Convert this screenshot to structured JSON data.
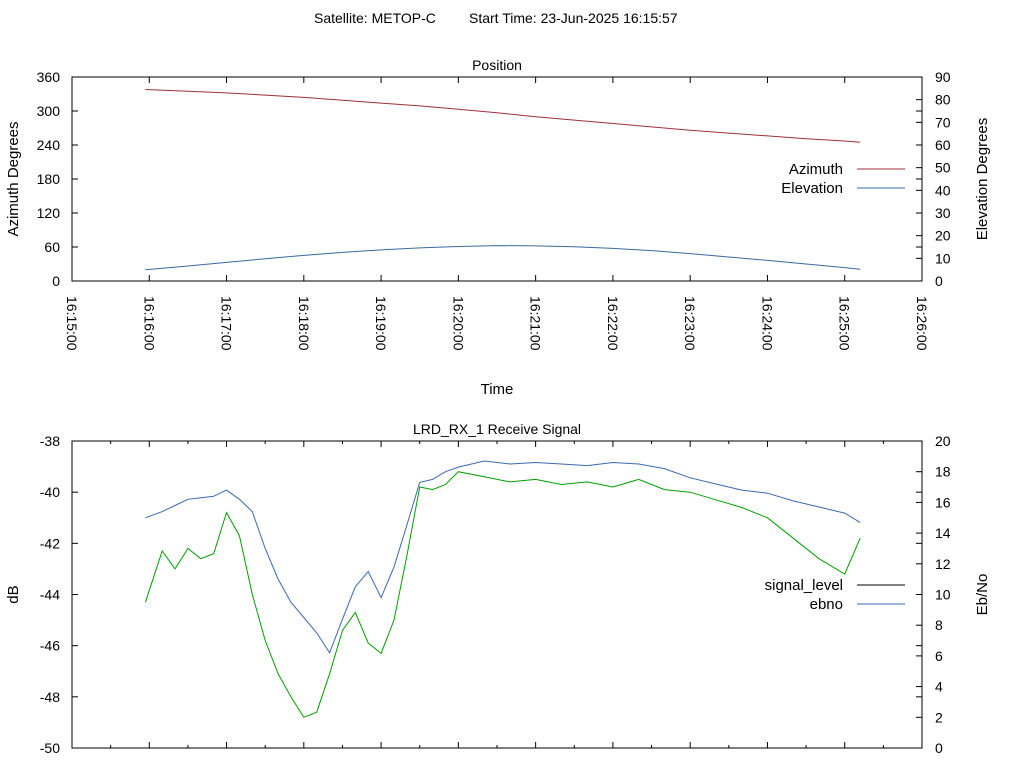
{
  "header": {
    "satellite_label": "Satellite: METOP-C",
    "start_time_label": "Start Time: 23-Jun-2025 16:15:57"
  },
  "chart_data": [
    {
      "type": "line",
      "title": "Position",
      "xlabel": "Time",
      "ylabel": "Azimuth Degrees",
      "y2label": "Elevation Degrees",
      "xlim": [
        "16:15:00",
        "16:26:00"
      ],
      "ylim": [
        0,
        360
      ],
      "y2lim": [
        0,
        90
      ],
      "x_ticks": [
        "16:15:00",
        "16:16:00",
        "16:17:00",
        "16:18:00",
        "16:19:00",
        "16:20:00",
        "16:21:00",
        "16:22:00",
        "16:23:00",
        "16:24:00",
        "16:25:00",
        "16:26:00"
      ],
      "y_ticks": [
        0,
        60,
        120,
        180,
        240,
        300,
        360
      ],
      "y2_ticks": [
        0,
        10,
        20,
        30,
        40,
        50,
        60,
        70,
        80,
        90
      ],
      "legend_position": "right",
      "grid": false,
      "series": [
        {
          "name": "Azimuth",
          "axis": "y",
          "color": "#a0303a",
          "x": [
            "16:15:57",
            "16:16:30",
            "16:17:00",
            "16:17:30",
            "16:18:00",
            "16:18:30",
            "16:19:00",
            "16:19:30",
            "16:20:00",
            "16:20:30",
            "16:21:00",
            "16:21:30",
            "16:22:00",
            "16:22:30",
            "16:23:00",
            "16:23:30",
            "16:24:00",
            "16:24:30",
            "16:25:00",
            "16:25:12"
          ],
          "values": [
            338,
            335,
            332,
            328,
            324,
            319,
            314,
            309,
            303,
            297,
            290,
            284,
            278,
            272,
            266,
            261,
            256,
            251,
            247,
            245
          ]
        },
        {
          "name": "Elevation",
          "axis": "y2",
          "color": "#3a6aa0",
          "x": [
            "16:15:57",
            "16:16:30",
            "16:17:00",
            "16:17:30",
            "16:18:00",
            "16:18:30",
            "16:19:00",
            "16:19:30",
            "16:20:00",
            "16:20:30",
            "16:21:00",
            "16:21:30",
            "16:22:00",
            "16:22:30",
            "16:23:00",
            "16:23:30",
            "16:24:00",
            "16:24:30",
            "16:25:00",
            "16:25:12"
          ],
          "values": [
            5,
            6.6,
            8.2,
            9.8,
            11.3,
            12.6,
            13.7,
            14.6,
            15.2,
            15.6,
            15.5,
            15.1,
            14.4,
            13.4,
            12.1,
            10.6,
            9.1,
            7.5,
            5.9,
            5.2
          ]
        }
      ]
    },
    {
      "type": "line",
      "title": "LRD_RX_1 Receive Signal",
      "ylabel": "dB",
      "y2label": "Eb/No",
      "xlim": [
        "16:15:00",
        "16:26:00"
      ],
      "ylim": [
        -50,
        -38
      ],
      "y2lim": [
        0,
        20
      ],
      "y_ticks": [
        -50,
        -48,
        -46,
        -44,
        -42,
        -40,
        -38
      ],
      "y2_ticks": [
        0,
        2,
        4,
        6,
        8,
        10,
        12,
        14,
        16,
        18,
        20
      ],
      "legend_position": "right",
      "grid": false,
      "series": [
        {
          "name": "signal_level",
          "axis": "y",
          "color": "#000000",
          "x": [],
          "values": []
        },
        {
          "name": "ebno",
          "axis": "y2",
          "color": "#3a6ab0",
          "x": [
            "16:15:57",
            "16:16:10",
            "16:16:20",
            "16:16:30",
            "16:16:40",
            "16:16:50",
            "16:17:00",
            "16:17:10",
            "16:17:20",
            "16:17:30",
            "16:17:40",
            "16:17:50",
            "16:18:00",
            "16:18:10",
            "16:18:20",
            "16:18:30",
            "16:18:40",
            "16:18:50",
            "16:19:00",
            "16:19:10",
            "16:19:20",
            "16:19:30",
            "16:19:40",
            "16:19:50",
            "16:20:00",
            "16:20:20",
            "16:20:40",
            "16:21:00",
            "16:21:20",
            "16:21:40",
            "16:22:00",
            "16:22:20",
            "16:22:40",
            "16:23:00",
            "16:23:20",
            "16:23:40",
            "16:24:00",
            "16:24:20",
            "16:24:40",
            "16:25:00",
            "16:25:12"
          ],
          "values": [
            15,
            15.4,
            15.8,
            16.2,
            16.3,
            16.4,
            16.8,
            16.2,
            15.4,
            13,
            11,
            9.5,
            8.5,
            7.5,
            6.2,
            8.4,
            10.5,
            11.5,
            9.8,
            11.8,
            14.5,
            17.3,
            17.5,
            18,
            18.3,
            18.7,
            18.5,
            18.6,
            18.5,
            18.4,
            18.6,
            18.5,
            18.2,
            17.6,
            17.2,
            16.8,
            16.6,
            16.1,
            15.7,
            15.3,
            14.7
          ]
        },
        {
          "name": "",
          "axis": "y",
          "color": "#00a000",
          "x": [
            "16:15:57",
            "16:16:10",
            "16:16:20",
            "16:16:30",
            "16:16:40",
            "16:16:50",
            "16:17:00",
            "16:17:10",
            "16:17:20",
            "16:17:30",
            "16:17:40",
            "16:17:50",
            "16:18:00",
            "16:18:10",
            "16:18:20",
            "16:18:30",
            "16:18:40",
            "16:18:50",
            "16:19:00",
            "16:19:10",
            "16:19:20",
            "16:19:30",
            "16:19:40",
            "16:19:50",
            "16:20:00",
            "16:20:20",
            "16:20:40",
            "16:21:00",
            "16:21:20",
            "16:21:40",
            "16:22:00",
            "16:22:20",
            "16:22:40",
            "16:23:00",
            "16:23:20",
            "16:23:40",
            "16:24:00",
            "16:24:20",
            "16:24:40",
            "16:25:00",
            "16:25:12"
          ],
          "values": [
            -44.3,
            -42.3,
            -43,
            -42.2,
            -42.6,
            -42.4,
            -40.8,
            -41.7,
            -44,
            -45.8,
            -47.1,
            -48,
            -48.8,
            -48.6,
            -47.1,
            -45.4,
            -44.7,
            -45.9,
            -46.3,
            -45,
            -42.5,
            -39.8,
            -39.9,
            -39.7,
            -39.2,
            -39.4,
            -39.6,
            -39.5,
            -39.7,
            -39.6,
            -39.8,
            -39.5,
            -39.9,
            -40,
            -40.3,
            -40.6,
            -41,
            -41.8,
            -42.6,
            -43.2,
            -41.8
          ]
        }
      ]
    }
  ]
}
